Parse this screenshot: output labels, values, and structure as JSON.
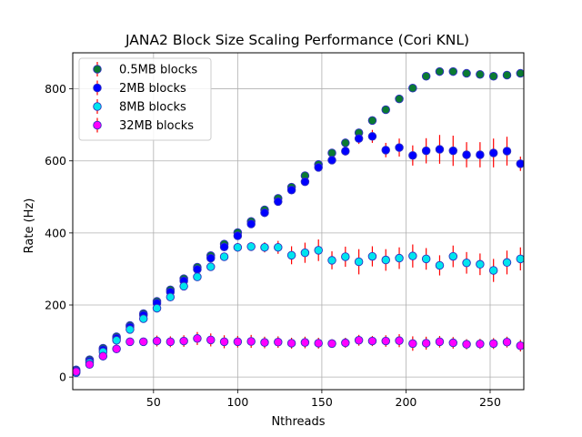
{
  "chart_data": {
    "type": "scatter",
    "title": "JANA2 Block Size Scaling Performance (Cori KNL)",
    "xlabel": "Nthreads",
    "ylabel": "Rate (Hz)",
    "xlim": [
      2,
      270
    ],
    "ylim": [
      -35,
      900
    ],
    "xticks": [
      50,
      100,
      150,
      200,
      250
    ],
    "yticks": [
      0,
      200,
      400,
      600,
      800
    ],
    "grid": true,
    "legend_position": "upper-left",
    "error_bar_color": "#ff0000",
    "marker_edge_color": "#3030c0",
    "x": [
      4,
      12,
      20,
      28,
      36,
      44,
      52,
      60,
      68,
      76,
      84,
      92,
      100,
      108,
      116,
      124,
      132,
      140,
      148,
      156,
      164,
      172,
      180,
      188,
      196,
      204,
      212,
      220,
      228,
      236,
      244,
      252,
      260,
      268
    ],
    "series": [
      {
        "name": "0.5MB blocks",
        "color": "#0a7a32",
        "values": [
          20,
          48,
          80,
          112,
          143,
          176,
          210,
          242,
          273,
          305,
          337,
          369,
          401,
          432,
          464,
          496,
          527,
          559,
          590,
          622,
          650,
          678,
          712,
          742,
          772,
          802,
          835,
          848,
          848,
          843,
          840,
          835,
          838,
          843
        ],
        "errors": [
          3,
          3,
          3,
          4,
          4,
          4,
          5,
          5,
          5,
          5,
          5,
          6,
          6,
          6,
          6,
          6,
          6,
          6,
          6,
          6,
          6,
          6,
          6,
          6,
          6,
          6,
          6,
          6,
          6,
          6,
          6,
          6,
          6,
          6
        ]
      },
      {
        "name": "2MB blocks",
        "color": "#0000ff",
        "values": [
          17,
          44,
          76,
          108,
          139,
          172,
          205,
          236,
          267,
          299,
          330,
          361,
          392,
          425,
          456,
          487,
          519,
          542,
          582,
          602,
          627,
          662,
          668,
          630,
          637,
          615,
          628,
          632,
          628,
          617,
          617,
          622,
          627,
          592
        ],
        "errors": [
          3,
          3,
          3,
          4,
          4,
          4,
          5,
          5,
          5,
          5,
          5,
          6,
          6,
          6,
          6,
          6,
          6,
          7,
          8,
          10,
          12,
          15,
          18,
          20,
          25,
          28,
          35,
          40,
          42,
          35,
          35,
          40,
          40,
          20
        ]
      },
      {
        "name": "8MB blocks",
        "color": "#00e5ee",
        "values": [
          12,
          40,
          70,
          102,
          132,
          162,
          191,
          222,
          252,
          278,
          306,
          334,
          360,
          362,
          360,
          360,
          338,
          345,
          352,
          324,
          334,
          320,
          335,
          325,
          330,
          336,
          328,
          310,
          335,
          317,
          313,
          296,
          318,
          328
        ],
        "errors": [
          3,
          3,
          3,
          4,
          4,
          4,
          5,
          5,
          6,
          6,
          8,
          10,
          12,
          12,
          14,
          18,
          25,
          28,
          30,
          25,
          28,
          35,
          28,
          30,
          30,
          32,
          30,
          28,
          30,
          30,
          30,
          32,
          33,
          32
        ]
      },
      {
        "name": "32MB blocks",
        "color": "#ff00ff",
        "values": [
          15,
          35,
          58,
          78,
          98,
          98,
          100,
          98,
          100,
          107,
          103,
          98,
          98,
          99,
          96,
          97,
          94,
          96,
          94,
          93,
          95,
          102,
          100,
          100,
          101,
          93,
          94,
          98,
          95,
          91,
          92,
          93,
          97,
          87
        ],
        "errors": [
          3,
          3,
          4,
          5,
          8,
          10,
          15,
          15,
          16,
          18,
          18,
          18,
          16,
          18,
          16,
          16,
          15,
          16,
          15,
          12,
          14,
          15,
          14,
          16,
          18,
          20,
          18,
          16,
          16,
          14,
          14,
          15,
          15,
          16
        ]
      }
    ]
  }
}
